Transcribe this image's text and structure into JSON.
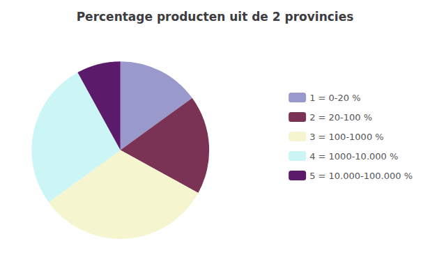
{
  "chart_data": {
    "type": "pie",
    "title": "Percentage producten uit de 2 provincies",
    "categories": [
      "1 = 0-20 %",
      "2 = 20-100 %",
      "3 = 100-1000 %",
      "4 = 1000-10.000 %",
      "5 = 10.000-100.000 %"
    ],
    "values": [
      15,
      18,
      32,
      27,
      8
    ],
    "colors": [
      "#9999cc",
      "#7b3355",
      "#f5f5d0",
      "#ccf5f5",
      "#5c1a6b"
    ],
    "legend": "right"
  }
}
